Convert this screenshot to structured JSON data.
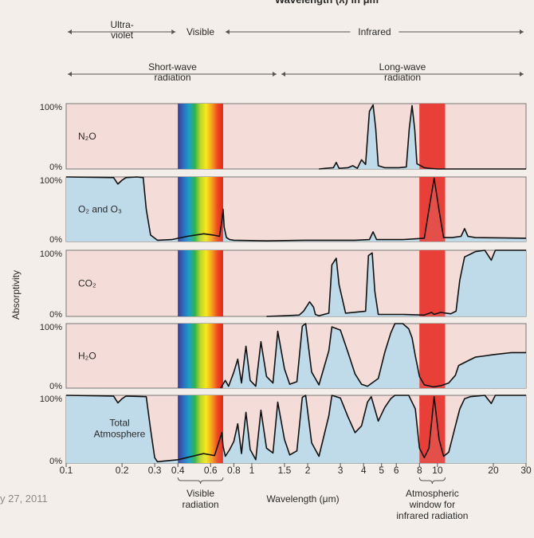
{
  "header": {
    "title_cut": "Wavelength (λ) in μm",
    "bands_top": [
      {
        "label": "Ultra-\nviolet",
        "from": 0.1,
        "to": 0.4
      },
      {
        "label": "Visible",
        "from": 0.4,
        "to": 0.7
      },
      {
        "label": "Infrared",
        "from": 0.7,
        "to": 30
      }
    ],
    "bands_bottom": [
      {
        "label": "Short-wave\nradiation",
        "from": 0.1,
        "to": 1.4
      },
      {
        "label": "Long-wave\nradiation",
        "from": 1.4,
        "to": 30
      }
    ]
  },
  "footer_date": "y 27, 2011",
  "colors": {
    "fill": "#bcd9ea",
    "panel_bg": "#f4dcd8",
    "window": "#e8403a",
    "rainbow": [
      "#3a3d9a",
      "#2c6fbe",
      "#1aa0c8",
      "#2eb24a",
      "#bfd62a",
      "#f6e81c",
      "#f7a21b",
      "#ee4a23",
      "#e3261d"
    ]
  },
  "chart_data": {
    "type": "area",
    "x_scale": "log",
    "xlim": [
      0.1,
      30
    ],
    "ylim": [
      0,
      100
    ],
    "ylabel": "Absorptivity",
    "xlabel": "Wavelength (μm)",
    "y_ticks": [
      "100%",
      "0%"
    ],
    "x_ticks": [
      {
        "v": 0.1,
        "label": "0.1"
      },
      {
        "v": 0.2,
        "label": "0.2"
      },
      {
        "v": 0.3,
        "label": "0.3"
      },
      {
        "v": 0.4,
        "label": "0.4"
      },
      {
        "v": 0.6,
        "label": "0.6"
      },
      {
        "v": 0.8,
        "label": "0.8"
      },
      {
        "v": 1,
        "label": "1"
      },
      {
        "v": 1.5,
        "label": "1.5"
      },
      {
        "v": 2,
        "label": "2"
      },
      {
        "v": 3,
        "label": "3"
      },
      {
        "v": 4,
        "label": "4"
      },
      {
        "v": 5,
        "label": "5"
      },
      {
        "v": 6,
        "label": "6"
      },
      {
        "v": 8,
        "label": "8"
      },
      {
        "v": 10,
        "label": "10"
      },
      {
        "v": 20,
        "label": "20"
      },
      {
        "v": 30,
        "label": "30"
      }
    ],
    "visible_band": {
      "from": 0.4,
      "to": 0.7,
      "label": "Visible\nradiation"
    },
    "window_band": {
      "from": 8,
      "to": 11,
      "label": "Atmospheric\nwindow for\ninfrared radiation"
    },
    "series": [
      {
        "name": "N₂O",
        "fill_from": 2.4,
        "points": [
          [
            2.3,
            0
          ],
          [
            2.5,
            1
          ],
          [
            2.75,
            2
          ],
          [
            2.85,
            10
          ],
          [
            2.95,
            1
          ],
          [
            3.3,
            2
          ],
          [
            3.5,
            5
          ],
          [
            3.7,
            1
          ],
          [
            3.9,
            14
          ],
          [
            4.1,
            7
          ],
          [
            4.3,
            88
          ],
          [
            4.5,
            98
          ],
          [
            4.65,
            62
          ],
          [
            4.8,
            5
          ],
          [
            5.2,
            2
          ],
          [
            6.2,
            2
          ],
          [
            6.8,
            3
          ],
          [
            7.05,
            62
          ],
          [
            7.3,
            97
          ],
          [
            7.55,
            60
          ],
          [
            7.75,
            8
          ],
          [
            8.5,
            2
          ],
          [
            9,
            1
          ],
          [
            10,
            0
          ],
          [
            30,
            0
          ]
        ]
      },
      {
        "name": "O₂ and O₃",
        "fill_from": 0.1,
        "points": [
          [
            0.1,
            100
          ],
          [
            0.18,
            99
          ],
          [
            0.19,
            89
          ],
          [
            0.2,
            95
          ],
          [
            0.21,
            99
          ],
          [
            0.24,
            100
          ],
          [
            0.26,
            99
          ],
          [
            0.27,
            50
          ],
          [
            0.285,
            10
          ],
          [
            0.31,
            2
          ],
          [
            0.37,
            3
          ],
          [
            0.45,
            8
          ],
          [
            0.55,
            12
          ],
          [
            0.62,
            10
          ],
          [
            0.67,
            8
          ],
          [
            0.69,
            32
          ],
          [
            0.7,
            50
          ],
          [
            0.71,
            22
          ],
          [
            0.73,
            6
          ],
          [
            0.76,
            3
          ],
          [
            0.8,
            2
          ],
          [
            1.2,
            1
          ],
          [
            2,
            2
          ],
          [
            3.6,
            2
          ],
          [
            4.3,
            3
          ],
          [
            4.5,
            15
          ],
          [
            4.7,
            3
          ],
          [
            6.5,
            3
          ],
          [
            8.5,
            5
          ],
          [
            9.1,
            58
          ],
          [
            9.6,
            98
          ],
          [
            10.2,
            48
          ],
          [
            10.8,
            6
          ],
          [
            12,
            6
          ],
          [
            13.4,
            8
          ],
          [
            14,
            20
          ],
          [
            14.6,
            8
          ],
          [
            16,
            6
          ],
          [
            30,
            5
          ]
        ]
      },
      {
        "name": "CO₂",
        "fill_from": 1.25,
        "points": [
          [
            1.2,
            0
          ],
          [
            1.5,
            1
          ],
          [
            1.8,
            2
          ],
          [
            1.9,
            8
          ],
          [
            2.05,
            22
          ],
          [
            2.15,
            14
          ],
          [
            2.2,
            3
          ],
          [
            2.3,
            1
          ],
          [
            2.6,
            5
          ],
          [
            2.7,
            78
          ],
          [
            2.85,
            88
          ],
          [
            2.95,
            48
          ],
          [
            3.2,
            5
          ],
          [
            4.1,
            8
          ],
          [
            4.25,
            92
          ],
          [
            4.45,
            96
          ],
          [
            4.6,
            38
          ],
          [
            4.8,
            3
          ],
          [
            6.5,
            3
          ],
          [
            8.5,
            2
          ],
          [
            9.3,
            6
          ],
          [
            9.6,
            3
          ],
          [
            10.4,
            6
          ],
          [
            11.8,
            4
          ],
          [
            12.6,
            8
          ],
          [
            13.2,
            55
          ],
          [
            14,
            90
          ],
          [
            15,
            94
          ],
          [
            16,
            98
          ],
          [
            18,
            100
          ],
          [
            19.5,
            85
          ],
          [
            20.5,
            100
          ],
          [
            30,
            100
          ]
        ]
      },
      {
        "name": "H₂O",
        "fill_from": 0.7,
        "points": [
          [
            0.68,
            0
          ],
          [
            0.72,
            12
          ],
          [
            0.75,
            3
          ],
          [
            0.8,
            25
          ],
          [
            0.84,
            45
          ],
          [
            0.88,
            8
          ],
          [
            0.93,
            65
          ],
          [
            0.98,
            12
          ],
          [
            1.05,
            3
          ],
          [
            1.12,
            72
          ],
          [
            1.2,
            18
          ],
          [
            1.3,
            8
          ],
          [
            1.38,
            88
          ],
          [
            1.5,
            30
          ],
          [
            1.6,
            6
          ],
          [
            1.75,
            10
          ],
          [
            1.87,
            96
          ],
          [
            1.95,
            100
          ],
          [
            2.1,
            25
          ],
          [
            2.3,
            5
          ],
          [
            2.6,
            58
          ],
          [
            2.7,
            95
          ],
          [
            3.0,
            90
          ],
          [
            3.3,
            55
          ],
          [
            3.6,
            22
          ],
          [
            3.9,
            6
          ],
          [
            4.2,
            3
          ],
          [
            4.8,
            15
          ],
          [
            5.2,
            55
          ],
          [
            5.6,
            85
          ],
          [
            5.9,
            100
          ],
          [
            6.5,
            100
          ],
          [
            7.0,
            92
          ],
          [
            7.3,
            78
          ],
          [
            7.6,
            50
          ],
          [
            8.0,
            18
          ],
          [
            8.5,
            5
          ],
          [
            9.5,
            2
          ],
          [
            10.5,
            4
          ],
          [
            11.5,
            8
          ],
          [
            12.5,
            20
          ],
          [
            13,
            35
          ],
          [
            14.5,
            42
          ],
          [
            16,
            48
          ],
          [
            18,
            50
          ],
          [
            20,
            52
          ],
          [
            25,
            55
          ],
          [
            30,
            55
          ]
        ]
      },
      {
        "name": "Total\nAtmosphere",
        "fill_from": 0.1,
        "points": [
          [
            0.1,
            100
          ],
          [
            0.18,
            99
          ],
          [
            0.19,
            89
          ],
          [
            0.2,
            95
          ],
          [
            0.21,
            99
          ],
          [
            0.27,
            98
          ],
          [
            0.285,
            50
          ],
          [
            0.3,
            8
          ],
          [
            0.31,
            2
          ],
          [
            0.4,
            5
          ],
          [
            0.55,
            14
          ],
          [
            0.63,
            11
          ],
          [
            0.69,
            45
          ],
          [
            0.7,
            25
          ],
          [
            0.72,
            10
          ],
          [
            0.76,
            20
          ],
          [
            0.8,
            32
          ],
          [
            0.84,
            58
          ],
          [
            0.88,
            14
          ],
          [
            0.93,
            75
          ],
          [
            0.98,
            20
          ],
          [
            1.05,
            5
          ],
          [
            1.12,
            78
          ],
          [
            1.2,
            22
          ],
          [
            1.3,
            15
          ],
          [
            1.38,
            90
          ],
          [
            1.5,
            35
          ],
          [
            1.6,
            12
          ],
          [
            1.75,
            18
          ],
          [
            1.87,
            97
          ],
          [
            1.95,
            100
          ],
          [
            2.1,
            30
          ],
          [
            2.3,
            10
          ],
          [
            2.6,
            70
          ],
          [
            2.7,
            100
          ],
          [
            3.0,
            96
          ],
          [
            3.3,
            68
          ],
          [
            3.6,
            45
          ],
          [
            3.9,
            55
          ],
          [
            4.2,
            90
          ],
          [
            4.4,
            98
          ],
          [
            4.8,
            62
          ],
          [
            5.2,
            82
          ],
          [
            5.6,
            95
          ],
          [
            5.9,
            100
          ],
          [
            7.0,
            100
          ],
          [
            7.6,
            80
          ],
          [
            8.0,
            22
          ],
          [
            8.5,
            8
          ],
          [
            9.0,
            22
          ],
          [
            9.6,
            98
          ],
          [
            10.2,
            35
          ],
          [
            10.8,
            10
          ],
          [
            11.5,
            16
          ],
          [
            12.5,
            55
          ],
          [
            13.2,
            80
          ],
          [
            14,
            95
          ],
          [
            15,
            98
          ],
          [
            18,
            100
          ],
          [
            19.5,
            88
          ],
          [
            20.5,
            100
          ],
          [
            30,
            100
          ]
        ]
      }
    ]
  }
}
